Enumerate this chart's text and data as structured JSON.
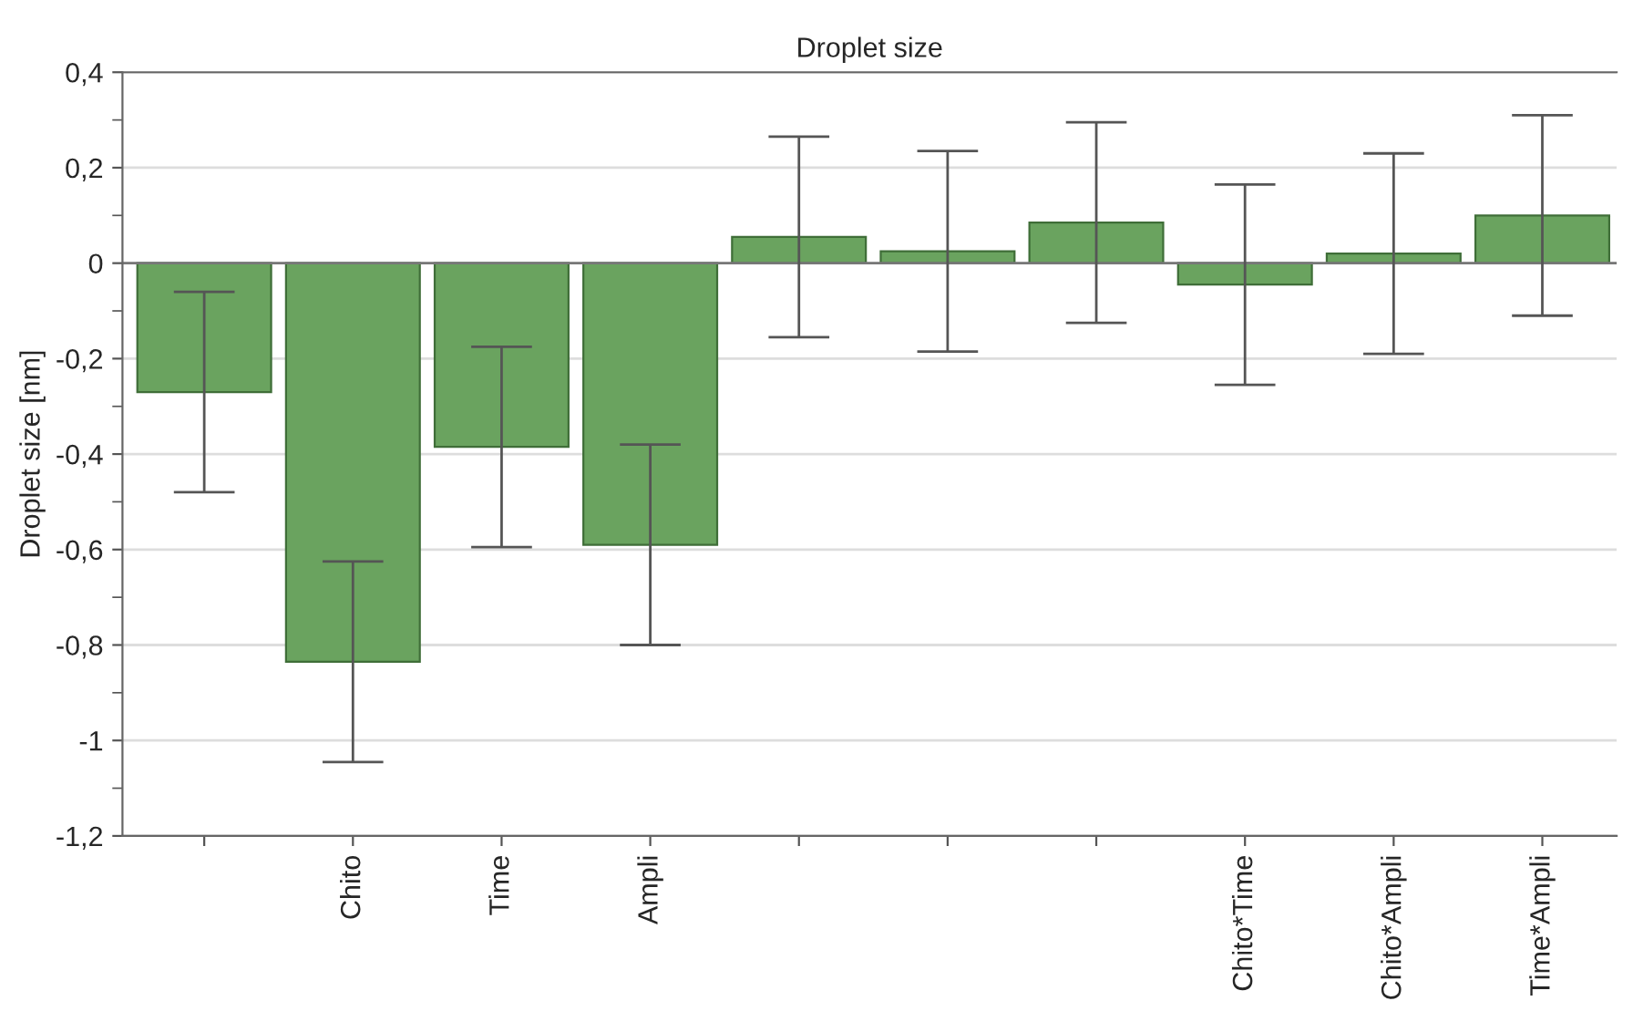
{
  "chart_data": {
    "type": "bar",
    "title": "Droplet size",
    "ylabel": "Droplet size [nm]",
    "categories": [
      null,
      "Chito",
      "Time",
      "Ampli",
      null,
      null,
      null,
      "Chito*Time",
      "Chito*Ampli",
      "Time*Ampli"
    ],
    "series": [
      {
        "color": "#6aa35f",
        "values": [
          -0.27,
          -0.835,
          -0.385,
          -0.59,
          0.055,
          0.025,
          0.085,
          -0.045,
          0.02,
          0.1
        ],
        "errors": [
          0.21,
          0.21,
          0.21,
          0.21,
          0.21,
          0.21,
          0.21,
          0.21,
          0.21,
          0.21
        ]
      }
    ],
    "ylim": [
      -1.2,
      0.4
    ],
    "yticks": [
      {
        "value": -1.2,
        "label": "-1,2"
      },
      {
        "value": -1,
        "label": "-1"
      },
      {
        "value": -0.8,
        "label": "-0,8"
      },
      {
        "value": -0.6,
        "label": "-0,6"
      },
      {
        "value": -0.4,
        "label": "-0,4"
      },
      {
        "value": -0.2,
        "label": "-0,2"
      },
      {
        "value": 0,
        "label": "0"
      },
      {
        "value": 0.2,
        "label": "0,2"
      },
      {
        "value": 0.4,
        "label": "0,4"
      }
    ],
    "grid": "y"
  }
}
